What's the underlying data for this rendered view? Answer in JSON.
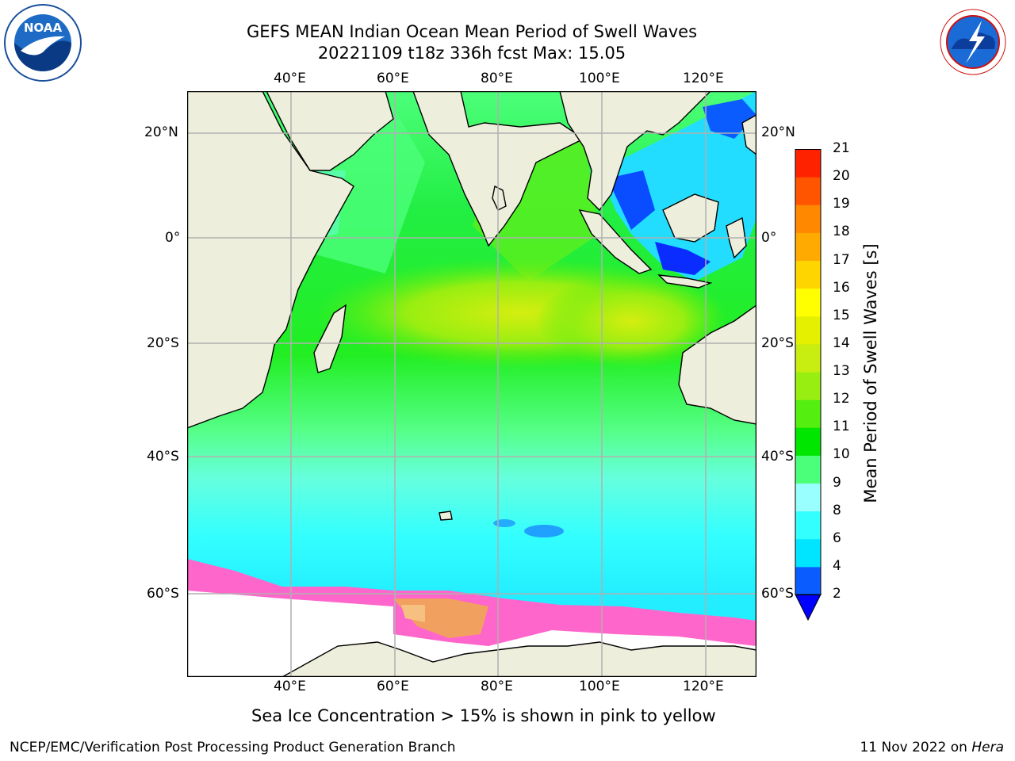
{
  "title": {
    "line1": "GEFS MEAN Indian Ocean Mean Period of Swell Waves",
    "line2": "20221109 t18z 336h fcst   Max: 15.05"
  },
  "logos": {
    "noaa": {
      "text": "NOAA",
      "ring": "NATIONAL OCEANIC AND ATMOSPHERIC ADMINISTRATION • U.S. DEPARTMENT OF COMMERCE"
    },
    "nws": {
      "ring": "NATIONAL WEATHER SERVICE"
    }
  },
  "map": {
    "lon_ticks": [
      "40°E",
      "60°E",
      "80°E",
      "100°E",
      "120°E"
    ],
    "lat_ticks": [
      "20°N",
      "0°",
      "20°S",
      "40°S",
      "60°S"
    ],
    "colors": {
      "land": "#eeeedc",
      "ice_pink": "#ff66cc",
      "ice_orange": "#f2a060",
      "antarctic": "#ffffff",
      "grid": "#b0b0b0",
      "coast": "#000000"
    }
  },
  "colorbar": {
    "label": "Mean Period of Swell Waves [s]",
    "ticks": [
      "2",
      "4",
      "6",
      "8",
      "9",
      "10",
      "11",
      "12",
      "13",
      "14",
      "15",
      "16",
      "17",
      "18",
      "19",
      "20",
      "21"
    ],
    "bands": [
      "#0a5cff",
      "#00e5ff",
      "#33ffff",
      "#99ffff",
      "#4cff7a",
      "#00e600",
      "#55ee11",
      "#99ee11",
      "#c8ee11",
      "#e4f000",
      "#ffff00",
      "#ffd500",
      "#ffaa00",
      "#ff8800",
      "#ff5500",
      "#ff2200"
    ],
    "extend_color": "#0000ff"
  },
  "note": "Sea Ice Concentration > 15% is shown in pink to yellow",
  "footer": {
    "left": "NCEP/EMC/Verification Post Processing Product Generation Branch",
    "date": "11 Nov 2022 on ",
    "machine": "Hera"
  }
}
